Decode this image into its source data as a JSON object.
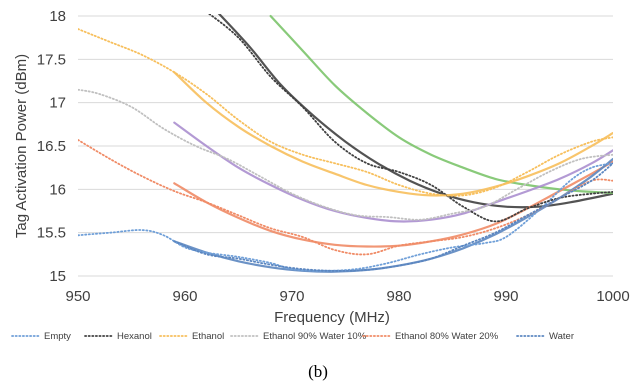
{
  "caption": "(b)",
  "colors": {
    "Empty": "#6f9fd8",
    "Hexanol": "#404040",
    "Ethanol": "#f7bf5c",
    "Ethanol 90% Water 10%": "#c0c0c0",
    "Ethanol 80% Water 20%": "#f08b66",
    "Water": "#5b86c0",
    "green_fit": "#7cc46c",
    "purple_fit": "#ab8fcf",
    "grid": "#d9d9d9"
  },
  "chart_data": {
    "type": "line",
    "title": "",
    "xlabel": "Frequency (MHz)",
    "ylabel": "Tag Activation Power (dBm)",
    "xlim": [
      950,
      1000
    ],
    "ylim": [
      15,
      18
    ],
    "xticks": [
      950,
      960,
      970,
      980,
      990,
      1000
    ],
    "yticks": [
      15,
      15.5,
      16,
      16.5,
      17,
      17.5,
      18
    ],
    "xtick_labels": [
      "950",
      "960",
      "970",
      "980",
      "990",
      "1000"
    ],
    "ytick_labels": [
      "15",
      "15.5",
      "16",
      "16.5",
      "17",
      "17.5",
      "18"
    ],
    "grid": "horizontal",
    "legend_position": "bottom",
    "legend": [
      "Empty",
      "Hexanol",
      "Ethanol",
      "Ethanol 90% Water 10%",
      "Ethanol 80% Water 20%",
      "Water"
    ],
    "series": [
      {
        "name": "Empty",
        "style": "dotted",
        "x": [
          950,
          953,
          956,
          958,
          960,
          962,
          965,
          968,
          970,
          973,
          976,
          979,
          982,
          985,
          988,
          990,
          993,
          996,
          998,
          1000
        ],
        "y": [
          15.47,
          15.5,
          15.53,
          15.47,
          15.33,
          15.27,
          15.22,
          15.15,
          15.08,
          15.06,
          15.08,
          15.15,
          15.25,
          15.33,
          15.38,
          15.45,
          15.75,
          16.1,
          16.25,
          16.3
        ]
      },
      {
        "name": "Hexanol",
        "style": "dotted",
        "x": [
          962,
          965,
          968,
          971,
          974,
          977,
          980,
          983,
          986,
          989,
          992,
          995,
          998,
          1000
        ],
        "y": [
          18.05,
          17.75,
          17.3,
          16.95,
          16.55,
          16.3,
          16.2,
          16.05,
          15.8,
          15.63,
          15.78,
          15.9,
          15.95,
          15.97
        ]
      },
      {
        "name": "Ethanol",
        "style": "dotted",
        "x": [
          950,
          953,
          956,
          959,
          962,
          965,
          968,
          971,
          974,
          977,
          980,
          983,
          986,
          989,
          992,
          995,
          998,
          1000
        ],
        "y": [
          17.85,
          17.7,
          17.55,
          17.35,
          17.1,
          16.8,
          16.55,
          16.4,
          16.3,
          16.2,
          16.05,
          15.95,
          15.93,
          16.02,
          16.2,
          16.4,
          16.55,
          16.6
        ]
      },
      {
        "name": "Ethanol 90% Water 10%",
        "style": "dotted",
        "x": [
          950,
          952,
          955,
          958,
          961,
          964,
          967,
          970,
          973,
          976,
          979,
          982,
          985,
          988,
          991,
          994,
          997,
          1000
        ],
        "y": [
          17.15,
          17.1,
          16.95,
          16.7,
          16.5,
          16.35,
          16.15,
          15.95,
          15.8,
          15.7,
          15.68,
          15.65,
          15.72,
          15.8,
          16.0,
          16.2,
          16.35,
          16.4
        ]
      },
      {
        "name": "Ethanol 80% Water 20%",
        "style": "dotted",
        "x": [
          950,
          953,
          956,
          959,
          962,
          965,
          968,
          971,
          974,
          977,
          980,
          983,
          986,
          989,
          992,
          995,
          998,
          1000
        ],
        "y": [
          16.57,
          16.35,
          16.15,
          15.98,
          15.85,
          15.7,
          15.55,
          15.45,
          15.3,
          15.25,
          15.35,
          15.4,
          15.45,
          15.55,
          15.7,
          15.9,
          16.1,
          16.1
        ]
      },
      {
        "name": "Water",
        "style": "dotted",
        "x": [
          959,
          962,
          965,
          968,
          971,
          974,
          977,
          980,
          983,
          986,
          989,
          992,
          995,
          998,
          1000
        ],
        "y": [
          15.4,
          15.25,
          15.2,
          15.13,
          15.08,
          15.06,
          15.07,
          15.12,
          15.2,
          15.35,
          15.5,
          15.7,
          15.9,
          16.1,
          16.3
        ]
      },
      {
        "fit_for": "Hexanol",
        "style": "solid",
        "x": [
          963,
          966,
          969,
          972,
          975,
          978,
          981,
          984,
          987,
          990,
          993,
          996,
          1000
        ],
        "y": [
          18.05,
          17.65,
          17.2,
          16.85,
          16.55,
          16.3,
          16.1,
          15.95,
          15.85,
          15.8,
          15.8,
          15.85,
          15.95
        ]
      },
      {
        "fit_for": "Ethanol 90% Water 10%",
        "style": "solid",
        "color_key": "green_fit",
        "x": [
          968,
          971,
          974,
          977,
          980,
          983,
          986,
          989,
          992,
          995,
          998,
          1000
        ],
        "y": [
          18.0,
          17.6,
          17.2,
          16.88,
          16.6,
          16.4,
          16.25,
          16.12,
          16.05,
          16.0,
          15.97,
          15.96
        ]
      },
      {
        "fit_for": "Ethanol",
        "style": "solid",
        "x": [
          959,
          962,
          965,
          968,
          971,
          974,
          977,
          980,
          983,
          986,
          989,
          992,
          995,
          998,
          1000
        ],
        "y": [
          17.35,
          17.0,
          16.72,
          16.5,
          16.32,
          16.18,
          16.05,
          15.97,
          15.93,
          15.95,
          16.03,
          16.15,
          16.3,
          16.5,
          16.65
        ]
      },
      {
        "fit_for": "Ethanol 80% Water 20%",
        "style": "solid",
        "color_key": "purple_fit",
        "x": [
          959,
          962,
          965,
          968,
          971,
          974,
          977,
          980,
          983,
          986,
          989,
          992,
          995,
          998,
          1000
        ],
        "y": [
          16.77,
          16.5,
          16.25,
          16.05,
          15.88,
          15.75,
          15.67,
          15.63,
          15.65,
          15.72,
          15.85,
          15.98,
          16.12,
          16.3,
          16.45
        ]
      },
      {
        "fit_for": "Water",
        "style": "solid",
        "color_key": "Ethanol 80% Water 20%",
        "x": [
          959,
          962,
          965,
          968,
          971,
          974,
          977,
          980,
          983,
          986,
          989,
          992,
          995,
          998,
          1000
        ],
        "y": [
          16.07,
          15.85,
          15.67,
          15.52,
          15.42,
          15.36,
          15.34,
          15.35,
          15.4,
          15.48,
          15.6,
          15.78,
          15.98,
          16.18,
          16.32
        ]
      },
      {
        "fit_for": "Empty",
        "style": "solid",
        "color_key": "Water",
        "x": [
          959,
          962,
          965,
          968,
          971,
          974,
          977,
          980,
          983,
          986,
          989,
          992,
          995,
          998,
          1000
        ],
        "y": [
          15.4,
          15.27,
          15.17,
          15.1,
          15.06,
          15.05,
          15.07,
          15.12,
          15.2,
          15.32,
          15.48,
          15.68,
          15.9,
          16.15,
          16.35
        ]
      }
    ]
  }
}
